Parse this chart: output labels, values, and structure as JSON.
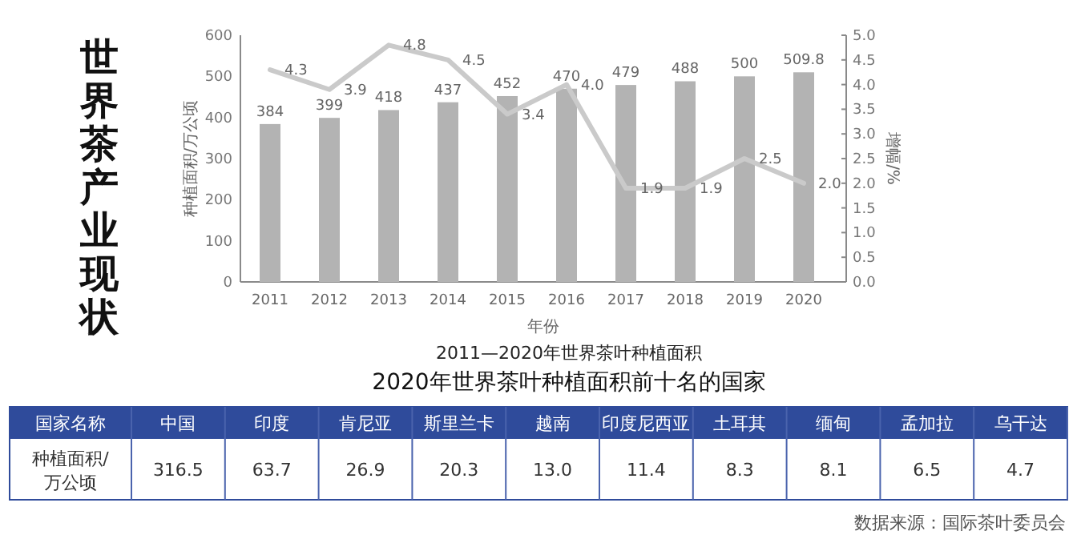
{
  "chart_data": [
    {
      "type": "bar",
      "title": "世界茶产业现状",
      "xlabel": "年份",
      "ylabel": "种植面积/万公顷",
      "y2label": "增幅/%",
      "annotations": [
        "2011—2020年世界茶叶种植面积"
      ],
      "categories": [
        "2011",
        "2012",
        "2013",
        "2014",
        "2015",
        "2016",
        "2017",
        "2018",
        "2019",
        "2020"
      ],
      "series": [
        {
          "type": "bar",
          "color": "#b3b3b3",
          "values": [
            384,
            399,
            418,
            437,
            452,
            470,
            479,
            488,
            500,
            509.8
          ],
          "value_labels": [
            "384",
            "399",
            "418",
            "437",
            "452",
            "470",
            "479",
            "488",
            "500",
            "509.8"
          ]
        },
        {
          "type": "line",
          "axis": "y2",
          "color": "#cacaca",
          "values": [
            4.3,
            3.9,
            4.8,
            4.5,
            3.4,
            4.0,
            1.9,
            1.9,
            2.5,
            2.0
          ],
          "value_labels": [
            "4.3",
            "3.9",
            "4.8",
            "4.5",
            "3.4",
            "4.0",
            "1.9",
            "1.9",
            "2.5",
            "2.0"
          ]
        }
      ],
      "ylim": [
        0,
        600
      ],
      "yticks": [
        0,
        100,
        200,
        300,
        400,
        500,
        600
      ],
      "y2lim": [
        0,
        5
      ],
      "y2ticks": [
        {
          "value": 0,
          "label": "0.0"
        },
        {
          "value": 0.5,
          "label": "0.5"
        },
        {
          "value": 1,
          "label": "1.0"
        },
        {
          "value": 1.5,
          "label": "1.5"
        },
        {
          "value": 2,
          "label": "2.0"
        },
        {
          "value": 2.5,
          "label": "2.5"
        },
        {
          "value": 3,
          "label": "3.0"
        },
        {
          "value": 3.5,
          "label": "3.5"
        },
        {
          "value": 4,
          "label": "4.0"
        },
        {
          "value": 4.5,
          "label": "4.5"
        },
        {
          "value": 5,
          "label": "5.0"
        }
      ]
    },
    {
      "type": "other",
      "title": "2020年世界茶叶种植面积前十名的国家",
      "xlabel": "国家名称",
      "ylabel": "种植面积/万公顷",
      "annotations": [
        "数据来源：国际茶叶委员会"
      ],
      "categories": [
        "中国",
        "印度",
        "肯尼亚",
        "斯里兰卡",
        "越南",
        "印度尼西亚",
        "土耳其",
        "缅甸",
        "孟加拉",
        "乌干达"
      ],
      "value_labels": [
        "316.5",
        "63.7",
        "26.9",
        "20.3",
        "13.0",
        "11.4",
        "8.3",
        "8.1",
        "6.5",
        "4.7"
      ]
    }
  ]
}
